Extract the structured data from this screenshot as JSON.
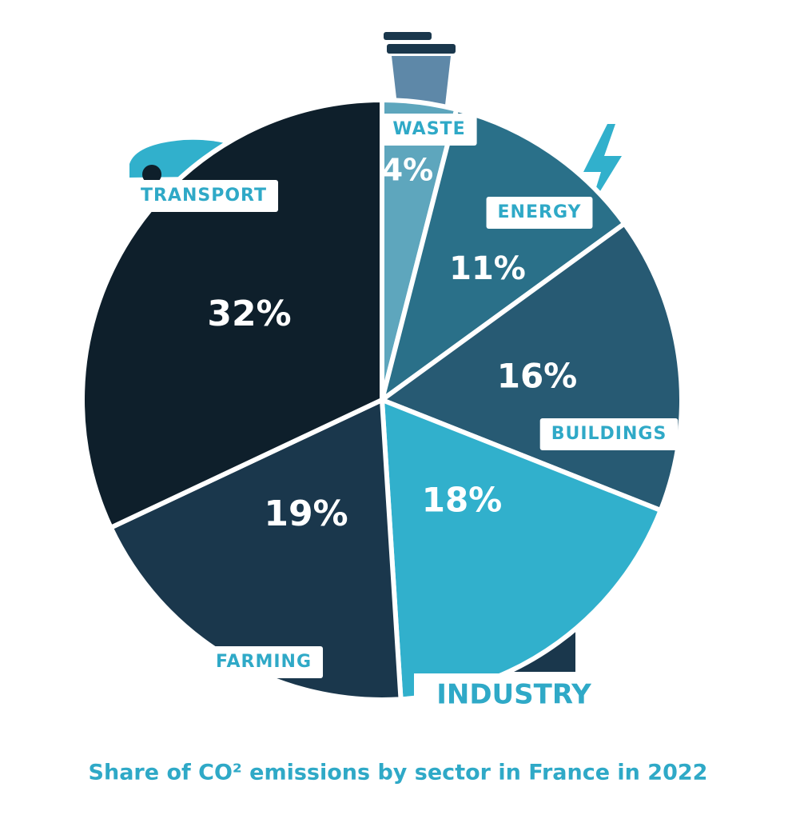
{
  "chart_data": {
    "type": "pie",
    "title": "Share of CO² emissions by sector in France in 2022",
    "categories": [
      "WASTE",
      "ENERGY",
      "BUILDINGS",
      "INDUSTRY",
      "FARMING",
      "TRANSPORT"
    ],
    "values": [
      4,
      11,
      16,
      18,
      19,
      32
    ],
    "value_labels": [
      "4%",
      "11%",
      "16%",
      "18%",
      "19%",
      "32%"
    ],
    "colors": [
      "#5ea6bd",
      "#2a7089",
      "#275a73",
      "#31b0cc",
      "#1a374c",
      "#0e1f2b"
    ]
  }
}
